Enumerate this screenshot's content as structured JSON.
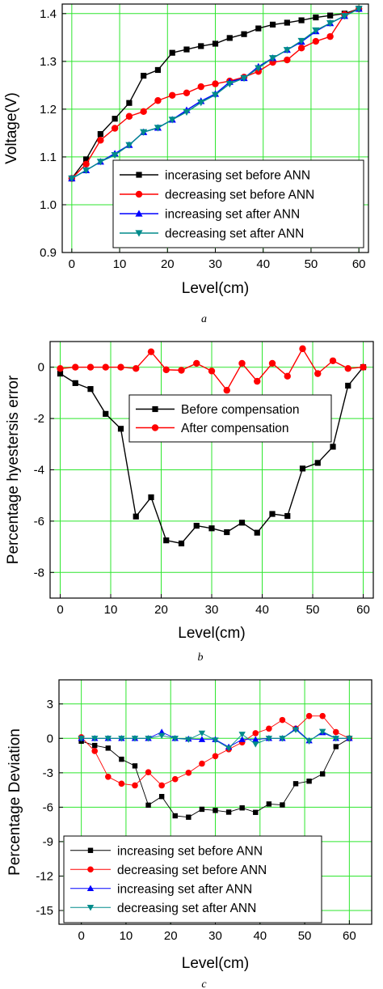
{
  "chart_data": [
    {
      "type": "line",
      "caption": "a",
      "xlabel": "Level(cm)",
      "ylabel": "Voltage(V)",
      "xlim": [
        -2,
        62
      ],
      "ylim": [
        0.9,
        1.42
      ],
      "xticks": [
        0,
        10,
        20,
        30,
        40,
        50,
        60
      ],
      "yticks": [
        0.9,
        1.0,
        1.1,
        1.2,
        1.3,
        1.4
      ],
      "ytick_labels": [
        "0.9",
        "1.0",
        "1.1",
        "1.2",
        "1.3",
        "1.4"
      ],
      "grid": true,
      "legend_position": "bottom-right",
      "x": [
        0,
        3,
        6,
        9,
        12,
        15,
        18,
        21,
        24,
        27,
        30,
        33,
        36,
        39,
        42,
        45,
        48,
        51,
        54,
        57,
        60
      ],
      "series": [
        {
          "name": "incerasing set before ANN",
          "color": "#000000",
          "marker": "square",
          "values": [
            1.055,
            1.095,
            1.148,
            1.18,
            1.213,
            1.27,
            1.282,
            1.318,
            1.325,
            1.332,
            1.337,
            1.349,
            1.357,
            1.369,
            1.377,
            1.381,
            1.386,
            1.392,
            1.396,
            1.4,
            1.41
          ]
        },
        {
          "name": "decreasing set before ANN",
          "color": "#ff0000",
          "marker": "circle",
          "values": [
            1.055,
            1.085,
            1.135,
            1.16,
            1.185,
            1.195,
            1.218,
            1.229,
            1.234,
            1.247,
            1.253,
            1.259,
            1.267,
            1.279,
            1.298,
            1.303,
            1.328,
            1.342,
            1.352,
            1.398,
            1.41
          ]
        },
        {
          "name": "increasing set after ANN",
          "color": "#0000ff",
          "marker": "triangle-up",
          "values": [
            1.055,
            1.072,
            1.09,
            1.107,
            1.125,
            1.152,
            1.161,
            1.178,
            1.198,
            1.217,
            1.232,
            1.257,
            1.265,
            1.289,
            1.307,
            1.324,
            1.341,
            1.363,
            1.38,
            1.395,
            1.41
          ]
        },
        {
          "name": "decreasing set after ANN",
          "color": "#008b8b",
          "marker": "triangle-down",
          "values": [
            1.055,
            1.072,
            1.09,
            1.104,
            1.125,
            1.152,
            1.161,
            1.178,
            1.194,
            1.214,
            1.23,
            1.253,
            1.265,
            1.286,
            1.307,
            1.324,
            1.343,
            1.365,
            1.38,
            1.395,
            1.41
          ]
        }
      ]
    },
    {
      "type": "line",
      "caption": "b",
      "xlabel": "Level(cm)",
      "ylabel": "Percentage hyestersis error",
      "xlim": [
        -2,
        62
      ],
      "ylim": [
        -9,
        1.0
      ],
      "xticks": [
        0,
        10,
        20,
        30,
        40,
        50,
        60
      ],
      "yticks": [
        -8,
        -6,
        -4,
        -2,
        0
      ],
      "ytick_labels": [
        "-8",
        "-6",
        "-4",
        "-2",
        "0"
      ],
      "grid": true,
      "legend_position": "top-center",
      "x": [
        0,
        3,
        6,
        9,
        12,
        15,
        18,
        21,
        24,
        27,
        30,
        33,
        36,
        39,
        42,
        45,
        48,
        51,
        54,
        57,
        60
      ],
      "series": [
        {
          "name": "Before compensation",
          "color": "#000000",
          "marker": "square",
          "values": [
            -0.25,
            -0.62,
            -0.85,
            -1.82,
            -2.4,
            -5.82,
            -5.07,
            -6.75,
            -6.87,
            -6.18,
            -6.28,
            -6.43,
            -6.06,
            -6.45,
            -5.72,
            -5.8,
            -3.95,
            -3.73,
            -3.1,
            -0.72,
            0.0
          ]
        },
        {
          "name": "After compensation",
          "color": "#ff0000",
          "marker": "circle",
          "values": [
            -0.05,
            0.0,
            0.0,
            0.0,
            0.0,
            -0.05,
            0.6,
            -0.1,
            -0.12,
            0.15,
            -0.15,
            -0.9,
            0.15,
            -0.55,
            0.15,
            -0.35,
            0.72,
            -0.25,
            0.25,
            -0.05,
            0.0
          ]
        }
      ]
    },
    {
      "type": "line",
      "caption": "c",
      "xlabel": "Level(cm)",
      "ylabel": "Percentage Deviation",
      "xlim": [
        -5,
        65
      ],
      "ylim": [
        -16.2,
        5.1
      ],
      "xticks": [
        0,
        10,
        20,
        30,
        40,
        50,
        60
      ],
      "yticks": [
        -15,
        -12,
        -9,
        -6,
        -3,
        0,
        3
      ],
      "ytick_labels": [
        "-15",
        "-12",
        "-9",
        "-6",
        "-3",
        "0",
        "3"
      ],
      "grid": true,
      "legend_position": "bottom",
      "x": [
        0,
        3,
        6,
        9,
        12,
        15,
        18,
        21,
        24,
        27,
        30,
        33,
        36,
        39,
        42,
        45,
        48,
        51,
        54,
        57,
        60
      ],
      "series": [
        {
          "name": "increasing set before ANN",
          "color": "#000000",
          "marker": "square",
          "values": [
            -0.25,
            -0.62,
            -0.85,
            -1.82,
            -2.4,
            -5.82,
            -5.07,
            -6.75,
            -6.87,
            -6.18,
            -6.28,
            -6.43,
            -6.06,
            -6.45,
            -5.72,
            -5.8,
            -3.95,
            -3.73,
            -3.1,
            -0.72,
            0.0
          ]
        },
        {
          "name": "decreasing set before ANN",
          "color": "#ff0000",
          "marker": "circle",
          "values": [
            0.1,
            -1.1,
            -3.35,
            -3.95,
            -4.1,
            -2.95,
            -4.1,
            -3.55,
            -3.0,
            -2.2,
            -1.55,
            -0.95,
            -0.35,
            0.45,
            0.85,
            1.6,
            0.85,
            1.95,
            1.95,
            0.55,
            0.0
          ]
        },
        {
          "name": "increasing set after ANN",
          "color": "#0000ff",
          "marker": "triangle-up",
          "values": [
            0.0,
            0.0,
            0.0,
            0.0,
            0.0,
            0.0,
            0.55,
            0.0,
            -0.05,
            -0.1,
            -0.1,
            -0.75,
            -0.1,
            -0.1,
            0.0,
            0.0,
            0.85,
            -0.2,
            0.5,
            0.0,
            0.0
          ]
        },
        {
          "name": "decreasing set after ANN",
          "color": "#008b8b",
          "marker": "triangle-down",
          "values": [
            0.0,
            0.0,
            0.0,
            0.0,
            0.0,
            0.0,
            0.25,
            0.0,
            -0.1,
            0.45,
            -0.15,
            -0.85,
            0.35,
            -0.5,
            0.0,
            0.0,
            0.75,
            -0.25,
            0.6,
            0.0,
            0.0
          ]
        }
      ]
    }
  ]
}
